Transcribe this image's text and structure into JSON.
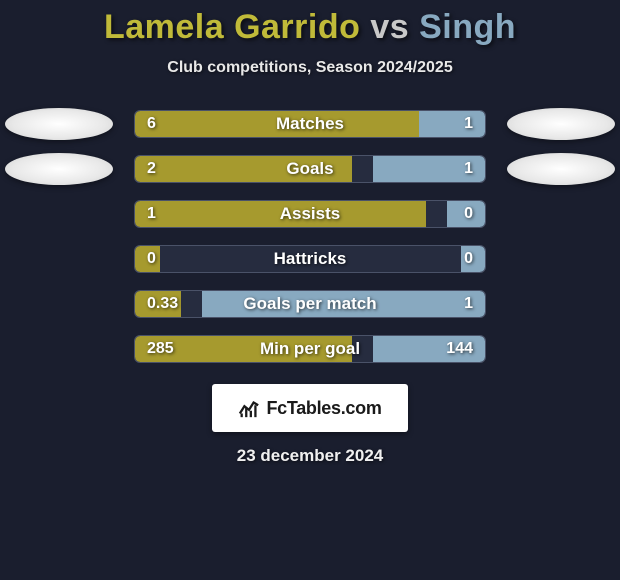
{
  "colors": {
    "background": "#1a1e2e",
    "left_accent": "#a69a2e",
    "right_accent": "#88a9c0",
    "title_left": "#c0ba39",
    "title_right": "#88a9c0",
    "bar_border": "#4a5268",
    "bar_bg": "#262c3f",
    "badge_bg": "#ffffff",
    "badge_text": "#1a1a1a"
  },
  "title": {
    "left": "Lamela Garrido",
    "vs": "vs",
    "right": "Singh"
  },
  "subtitle": "Club competitions, Season 2024/2025",
  "stats": [
    {
      "label": "Matches",
      "left_val": "6",
      "right_val": "1",
      "left_pct": 81,
      "right_pct": 19,
      "show_avatars": true
    },
    {
      "label": "Goals",
      "left_val": "2",
      "right_val": "1",
      "left_pct": 62,
      "right_pct": 32,
      "show_avatars": true
    },
    {
      "label": "Assists",
      "left_val": "1",
      "right_val": "0",
      "left_pct": 83,
      "right_pct": 11,
      "show_avatars": false
    },
    {
      "label": "Hattricks",
      "left_val": "0",
      "right_val": "0",
      "left_pct": 7,
      "right_pct": 7,
      "show_avatars": false
    },
    {
      "label": "Goals per match",
      "left_val": "0.33",
      "right_val": "1",
      "left_pct": 13,
      "right_pct": 81,
      "show_avatars": false
    },
    {
      "label": "Min per goal",
      "left_val": "285",
      "right_val": "144",
      "left_pct": 62,
      "right_pct": 32,
      "show_avatars": false
    }
  ],
  "badge": {
    "text": "FcTables.com"
  },
  "date": "23 december 2024"
}
